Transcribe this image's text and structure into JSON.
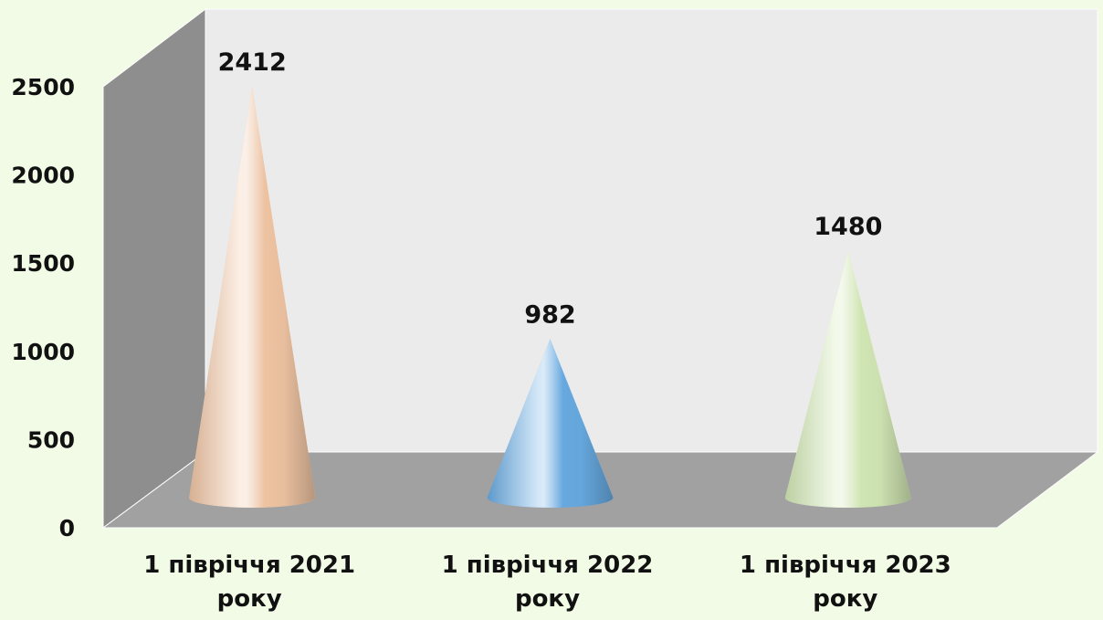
{
  "chart_data": {
    "type": "bar",
    "bar_shape": "cone",
    "categories": [
      [
        "1 півріччя 2021",
        "року"
      ],
      [
        "1 півріччя 2022",
        "року"
      ],
      [
        "1 півріччя 2023",
        "року"
      ]
    ],
    "values": [
      2412,
      982,
      1480
    ],
    "data_labels": [
      "2412",
      "982",
      "1480"
    ],
    "ylim": [
      0,
      2500
    ],
    "yticks": [
      0,
      500,
      1000,
      1500,
      2000,
      2500
    ],
    "grid": false,
    "colors": [
      "#f4c8a6",
      "#6aaee6",
      "#d6ecb8"
    ],
    "background": "#f1fbe6",
    "wall_color": "#ebebeb",
    "floor_color": "#a1a1a1"
  }
}
